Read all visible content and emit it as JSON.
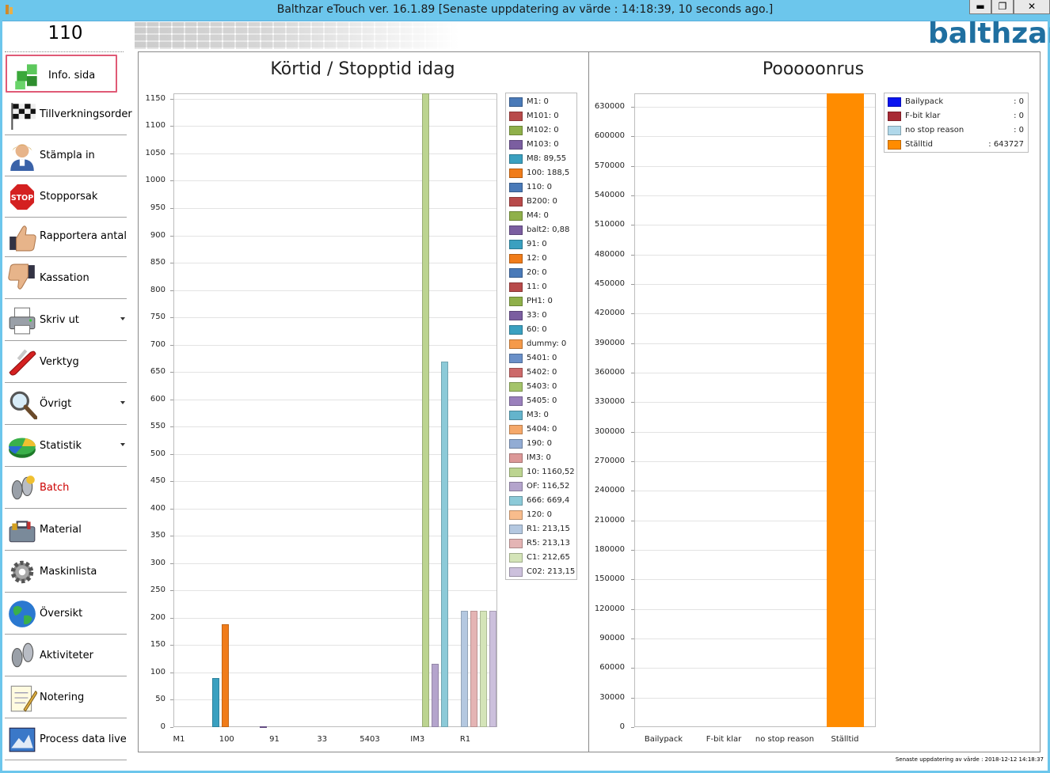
{
  "window": {
    "title": "Balthzar eTouch ver. 16.1.89  [Senaste uppdatering av värde : 14:18:39, 10 seconds ago.]",
    "minimize_label": "▬",
    "maximize_label": "❐",
    "close_label": "✕"
  },
  "sidebar": {
    "machine_id": "110",
    "items": [
      {
        "label": "Info. sida",
        "icon": "cubes-icon",
        "active": true,
        "caret": false
      },
      {
        "label": "Tillverkningsorder",
        "icon": "checkered-flag-icon",
        "caret": false
      },
      {
        "label": "Stämpla in",
        "icon": "user-icon",
        "caret": false
      },
      {
        "label": "Stopporsak",
        "icon": "stop-sign-icon",
        "caret": false
      },
      {
        "label": "Rapportera antal",
        "icon": "thumbs-up-icon",
        "caret": false
      },
      {
        "label": "Kassation",
        "icon": "thumbs-down-icon",
        "caret": false
      },
      {
        "label": "Skriv ut",
        "icon": "printer-icon",
        "caret": true
      },
      {
        "label": "Verktyg",
        "icon": "multitool-icon",
        "caret": false
      },
      {
        "label": "Övrigt",
        "icon": "magnifier-icon",
        "caret": true
      },
      {
        "label": "Statistik",
        "icon": "pie-chart-icon",
        "caret": true
      },
      {
        "label": "Batch",
        "icon": "batch-footprints-icon",
        "caret": false
      },
      {
        "label": "Material",
        "icon": "toolbox-icon",
        "caret": false
      },
      {
        "label": "Maskinlista",
        "icon": "gear-icon",
        "caret": false
      },
      {
        "label": "Översikt",
        "icon": "globe-icon",
        "caret": false
      },
      {
        "label": "Aktiviteter",
        "icon": "footprints-icon",
        "caret": false
      },
      {
        "label": "Notering",
        "icon": "notepad-icon",
        "caret": false
      },
      {
        "label": "Process data live",
        "icon": "image-chart-icon",
        "caret": false
      }
    ]
  },
  "header": {
    "logo_text": "balthzar"
  },
  "chart_data": [
    {
      "type": "bar",
      "title": "Körtid / Stopptid idag",
      "ylim": [
        0,
        1160
      ],
      "ytick_step": 50,
      "yticks": [
        0,
        50,
        100,
        150,
        200,
        250,
        300,
        350,
        400,
        450,
        500,
        550,
        600,
        650,
        700,
        750,
        800,
        850,
        900,
        950,
        1000,
        1050,
        1100,
        1150
      ],
      "x_tick_labels": [
        "M1",
        "100",
        "91",
        "33",
        "5403",
        "IM3",
        "R1"
      ],
      "legend_position": "right",
      "series": [
        {
          "name": "M1",
          "value": 0,
          "legend": "M1: 0",
          "color": "#4a7ab8"
        },
        {
          "name": "M101",
          "value": 0,
          "legend": "M101: 0",
          "color": "#b84a4a"
        },
        {
          "name": "M102",
          "value": 0,
          "legend": "M102: 0",
          "color": "#8fb04a"
        },
        {
          "name": "M103",
          "value": 0,
          "legend": "M103: 0",
          "color": "#7b5ea0"
        },
        {
          "name": "M8",
          "value": 89.55,
          "legend": "M8: 89,55",
          "color": "#3aa0c0"
        },
        {
          "name": "100",
          "value": 188.5,
          "legend": "100: 188,5",
          "color": "#f07c1a"
        },
        {
          "name": "110",
          "value": 0,
          "legend": "110: 0",
          "color": "#4a7ab8"
        },
        {
          "name": "B200",
          "value": 0,
          "legend": "B200: 0",
          "color": "#b84a4a"
        },
        {
          "name": "M4",
          "value": 0,
          "legend": "M4: 0",
          "color": "#8fb04a"
        },
        {
          "name": "balt2",
          "value": 0.88,
          "legend": "balt2: 0,88",
          "color": "#7b5ea0"
        },
        {
          "name": "91",
          "value": 0,
          "legend": "91: 0",
          "color": "#3aa0c0"
        },
        {
          "name": "12",
          "value": 0,
          "legend": "12: 0",
          "color": "#f07c1a"
        },
        {
          "name": "20",
          "value": 0,
          "legend": "20: 0",
          "color": "#4a7ab8"
        },
        {
          "name": "11",
          "value": 0,
          "legend": "11: 0",
          "color": "#b84a4a"
        },
        {
          "name": "PH1",
          "value": 0,
          "legend": "PH1: 0",
          "color": "#8fb04a"
        },
        {
          "name": "33",
          "value": 0,
          "legend": "33: 0",
          "color": "#7b5ea0"
        },
        {
          "name": "60",
          "value": 0,
          "legend": "60: 0",
          "color": "#3aa0c0"
        },
        {
          "name": "dummy",
          "value": 0,
          "legend": "dummy: 0",
          "color": "#f59a4a"
        },
        {
          "name": "5401",
          "value": 0,
          "legend": "5401: 0",
          "color": "#6a90c8"
        },
        {
          "name": "5402",
          "value": 0,
          "legend": "5402: 0",
          "color": "#cc6a6a"
        },
        {
          "name": "5403",
          "value": 0,
          "legend": "5403: 0",
          "color": "#a4c46a"
        },
        {
          "name": "5405",
          "value": 0,
          "legend": "5405: 0",
          "color": "#9a80bc"
        },
        {
          "name": "M3",
          "value": 0,
          "legend": "M3: 0",
          "color": "#64b4cc"
        },
        {
          "name": "5404",
          "value": 0,
          "legend": "5404: 0",
          "color": "#f5a86a"
        },
        {
          "name": "190",
          "value": 0,
          "legend": "190: 0",
          "color": "#92acd4"
        },
        {
          "name": "IM3",
          "value": 0,
          "legend": "IM3: 0",
          "color": "#dc9898"
        },
        {
          "name": "10",
          "value": 1160.52,
          "legend": "10: 1160,52",
          "color": "#bcd490"
        },
        {
          "name": "OF",
          "value": 116.52,
          "legend": "OF: 116,52",
          "color": "#b4a4cc"
        },
        {
          "name": "666",
          "value": 669.4,
          "legend": "666: 669,4",
          "color": "#8ccad8"
        },
        {
          "name": "120",
          "value": 0,
          "legend": "120: 0",
          "color": "#f8bc8c"
        },
        {
          "name": "R1",
          "value": 213.15,
          "legend": "R1: 213,15",
          "color": "#b4c8e0"
        },
        {
          "name": "R5",
          "value": 213.13,
          "legend": "R5: 213,13",
          "color": "#e4b4b4"
        },
        {
          "name": "C1",
          "value": 212.65,
          "legend": "C1: 212,65",
          "color": "#d4e4b8"
        },
        {
          "name": "C02",
          "value": 213.15,
          "legend": "C02: 213,15",
          "color": "#ccc0dc"
        }
      ]
    },
    {
      "type": "bar",
      "title": "Pooooonrus",
      "ylim": [
        0,
        643727
      ],
      "ytick_step": 30000,
      "yticks": [
        0,
        30000,
        60000,
        90000,
        120000,
        150000,
        180000,
        210000,
        240000,
        270000,
        300000,
        330000,
        360000,
        390000,
        420000,
        450000,
        480000,
        510000,
        540000,
        570000,
        600000,
        630000
      ],
      "categories": [
        "Bailypack",
        "F-bit klar",
        "no stop reason",
        "Ställtid"
      ],
      "legend_position": "right",
      "series": [
        {
          "name": "Bailypack",
          "value": 0,
          "legend_name": "Bailypack",
          "legend_value": ": 0",
          "color": "#0a14f0"
        },
        {
          "name": "F-bit klar",
          "value": 0,
          "legend_name": "F-bit klar",
          "legend_value": ": 0",
          "color": "#a82a34"
        },
        {
          "name": "no stop reason",
          "value": 0,
          "legend_name": "no stop reason",
          "legend_value": ": 0",
          "color": "#b0d8ea"
        },
        {
          "name": "Ställtid",
          "value": 643727,
          "legend_name": "Ställtid",
          "legend_value": ": 643727",
          "color": "#ff8c00"
        }
      ]
    }
  ],
  "footer": {
    "status_text": "Senaste uppdatering av värde : 2018-12-12 14:18:37"
  }
}
